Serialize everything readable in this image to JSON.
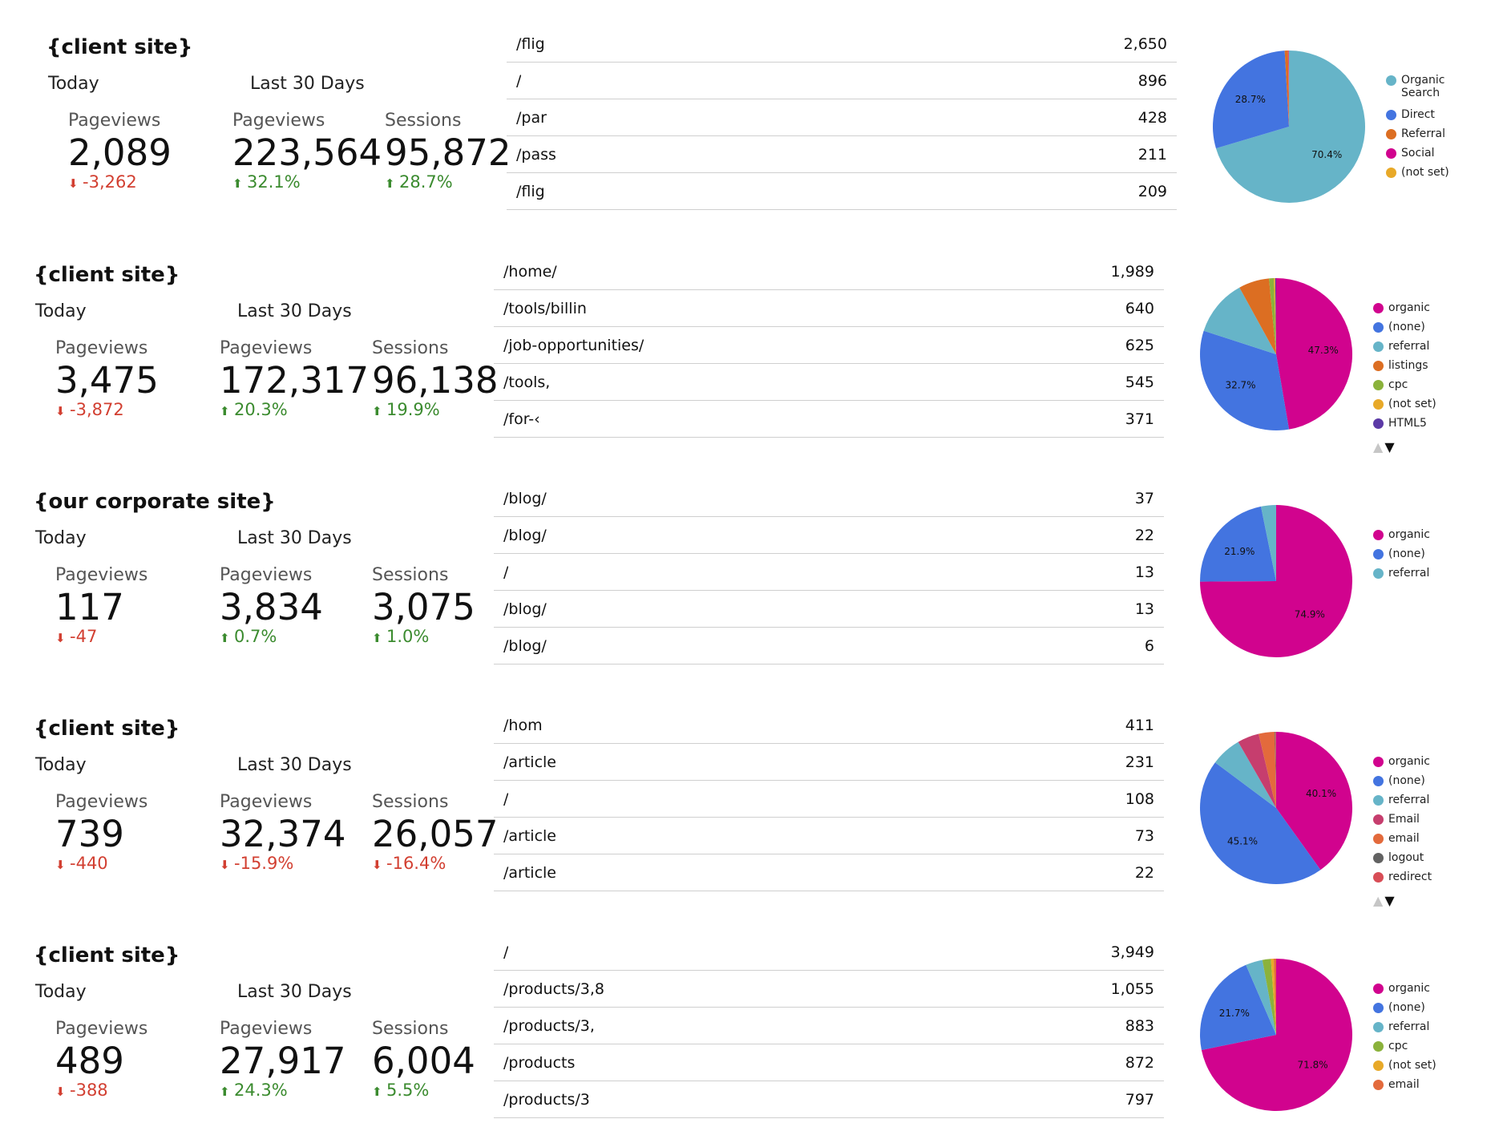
{
  "sections": [
    {
      "title": "{client site}",
      "today_label": "Today",
      "last30_label": "Last 30 Days",
      "today": {
        "label": "Pageviews",
        "value": "2,089",
        "delta": "-3,262",
        "dir": "down"
      },
      "pv30": {
        "label": "Pageviews",
        "value": "223,564",
        "delta": "32.1%",
        "dir": "up"
      },
      "sess30": {
        "label": "Sessions",
        "value": "95,872",
        "delta": "28.7%",
        "dir": "up"
      },
      "pages": [
        {
          "path": "/flig",
          "count": "2,650"
        },
        {
          "path": "/",
          "count": "896"
        },
        {
          "path": "/par",
          "count": "428"
        },
        {
          "path": "/pass",
          "count": "211"
        },
        {
          "path": "/flig",
          "count": "209"
        }
      ],
      "chart_data": {
        "type": "pie",
        "slices": [
          {
            "name": "Organic Search",
            "value": 70.4,
            "color": "#66b4c8",
            "label": "70.4%"
          },
          {
            "name": "Direct",
            "value": 28.7,
            "color": "#4374e0",
            "label": "28.7%"
          },
          {
            "name": "Referral",
            "value": 0.7,
            "color": "#dc6e22",
            "label": ""
          },
          {
            "name": "Social",
            "value": 0.15,
            "color": "#d1038e",
            "label": ""
          },
          {
            "name": "(not set)",
            "value": 0.05,
            "color": "#e8a928",
            "label": ""
          }
        ],
        "legend_lines": [
          [
            "Organic",
            "Search"
          ],
          [
            "Direct"
          ],
          [
            "Referral"
          ],
          [
            "Social"
          ],
          [
            "(not set)"
          ]
        ],
        "legend_position": "right",
        "pager": false
      }
    },
    {
      "title": "{client site}",
      "today_label": "Today",
      "last30_label": "Last 30 Days",
      "today": {
        "label": "Pageviews",
        "value": "3,475",
        "delta": "-3,872",
        "dir": "down"
      },
      "pv30": {
        "label": "Pageviews",
        "value": "172,317",
        "delta": "20.3%",
        "dir": "up"
      },
      "sess30": {
        "label": "Sessions",
        "value": "96,138",
        "delta": "19.9%",
        "dir": "up"
      },
      "pages": [
        {
          "path": "/home/",
          "count": "1,989"
        },
        {
          "path": "/tools/billin",
          "count": "640"
        },
        {
          "path": "/job-opportunities/",
          "count": "625"
        },
        {
          "path": "/tools,",
          "count": "545"
        },
        {
          "path": "/for-‹",
          "count": "371"
        }
      ],
      "chart_data": {
        "type": "pie",
        "slices": [
          {
            "name": "organic",
            "value": 47.3,
            "color": "#d1038e",
            "label": "47.3%"
          },
          {
            "name": "(none)",
            "value": 32.7,
            "color": "#4374e0",
            "label": "32.7%"
          },
          {
            "name": "referral",
            "value": 12.0,
            "color": "#66b4c8",
            "label": ""
          },
          {
            "name": "listings",
            "value": 6.5,
            "color": "#dc6e22",
            "label": ""
          },
          {
            "name": "cpc",
            "value": 1.0,
            "color": "#8bb23b",
            "label": ""
          },
          {
            "name": "(not set)",
            "value": 0.3,
            "color": "#e8a928",
            "label": ""
          },
          {
            "name": "HTML5",
            "value": 0.2,
            "color": "#5c3aa6",
            "label": ""
          }
        ],
        "legend_lines": [
          [
            "organic"
          ],
          [
            "(none)"
          ],
          [
            "referral"
          ],
          [
            "listings"
          ],
          [
            "cpc"
          ],
          [
            "(not set)"
          ],
          [
            "HTML5"
          ]
        ],
        "legend_position": "right",
        "pager": true
      }
    },
    {
      "title": "{our corporate site}",
      "today_label": "Today",
      "last30_label": "Last 30 Days",
      "today": {
        "label": "Pageviews",
        "value": "117",
        "delta": "-47",
        "dir": "down"
      },
      "pv30": {
        "label": "Pageviews",
        "value": "3,834",
        "delta": "0.7%",
        "dir": "up"
      },
      "sess30": {
        "label": "Sessions",
        "value": "3,075",
        "delta": "1.0%",
        "dir": "up"
      },
      "pages": [
        {
          "path": "/blog/",
          "count": "37"
        },
        {
          "path": "/blog/",
          "count": "22"
        },
        {
          "path": "/",
          "count": "13"
        },
        {
          "path": "/blog/",
          "count": "13"
        },
        {
          "path": "/blog/",
          "count": "6"
        }
      ],
      "chart_data": {
        "type": "pie",
        "slices": [
          {
            "name": "organic",
            "value": 74.9,
            "color": "#d1038e",
            "label": "74.9%"
          },
          {
            "name": "(none)",
            "value": 21.9,
            "color": "#4374e0",
            "label": "21.9%"
          },
          {
            "name": "referral",
            "value": 3.2,
            "color": "#66b4c8",
            "label": ""
          }
        ],
        "legend_lines": [
          [
            "organic"
          ],
          [
            "(none)"
          ],
          [
            "referral"
          ]
        ],
        "legend_position": "right",
        "pager": false
      }
    },
    {
      "title": "{client site}",
      "today_label": "Today",
      "last30_label": "Last 30 Days",
      "today": {
        "label": "Pageviews",
        "value": "739",
        "delta": "-440",
        "dir": "down"
      },
      "pv30": {
        "label": "Pageviews",
        "value": "32,374",
        "delta": "-15.9%",
        "dir": "down"
      },
      "sess30": {
        "label": "Sessions",
        "value": "26,057",
        "delta": "-16.4%",
        "dir": "down"
      },
      "pages": [
        {
          "path": "/hom",
          "count": "411"
        },
        {
          "path": "/article",
          "count": "231"
        },
        {
          "path": "/",
          "count": "108"
        },
        {
          "path": "/article",
          "count": "73"
        },
        {
          "path": "/article",
          "count": "22"
        }
      ],
      "chart_data": {
        "type": "pie",
        "slices": [
          {
            "name": "organic",
            "value": 40.1,
            "color": "#d1038e",
            "label": "40.1%"
          },
          {
            "name": "(none)",
            "value": 45.1,
            "color": "#4374e0",
            "label": "45.1%"
          },
          {
            "name": "referral",
            "value": 6.5,
            "color": "#66b4c8",
            "label": ""
          },
          {
            "name": "Email",
            "value": 4.6,
            "color": "#c63e6e",
            "label": ""
          },
          {
            "name": "email",
            "value": 3.4,
            "color": "#e36a3c",
            "label": ""
          },
          {
            "name": "logout",
            "value": 0.15,
            "color": "#626262",
            "label": ""
          },
          {
            "name": "redirect",
            "value": 0.15,
            "color": "#d84d56",
            "label": ""
          }
        ],
        "legend_lines": [
          [
            "organic"
          ],
          [
            "(none)"
          ],
          [
            "referral"
          ],
          [
            "Email"
          ],
          [
            "email"
          ],
          [
            "logout"
          ],
          [
            "redirect"
          ]
        ],
        "legend_position": "right",
        "pager": true
      }
    },
    {
      "title": "{client site}",
      "today_label": "Today",
      "last30_label": "Last 30 Days",
      "today": {
        "label": "Pageviews",
        "value": "489",
        "delta": "-388",
        "dir": "down"
      },
      "pv30": {
        "label": "Pageviews",
        "value": "27,917",
        "delta": "24.3%",
        "dir": "up"
      },
      "sess30": {
        "label": "Sessions",
        "value": "6,004",
        "delta": "5.5%",
        "dir": "up"
      },
      "pages": [
        {
          "path": "/",
          "count": "3,949"
        },
        {
          "path": "/products/3,8",
          "count": "1,055"
        },
        {
          "path": "/products/3,",
          "count": "883"
        },
        {
          "path": "/products",
          "count": "872"
        },
        {
          "path": "/products/3",
          "count": "797"
        }
      ],
      "chart_data": {
        "type": "pie",
        "slices": [
          {
            "name": "organic",
            "value": 71.8,
            "color": "#d1038e",
            "label": "71.8%"
          },
          {
            "name": "(none)",
            "value": 21.7,
            "color": "#4374e0",
            "label": "21.7%"
          },
          {
            "name": "referral",
            "value": 3.6,
            "color": "#66b4c8",
            "label": ""
          },
          {
            "name": "cpc",
            "value": 1.8,
            "color": "#8bb23b",
            "label": ""
          },
          {
            "name": "(not set)",
            "value": 0.6,
            "color": "#e8a928",
            "label": ""
          },
          {
            "name": "email",
            "value": 0.5,
            "color": "#e36a3c",
            "label": ""
          }
        ],
        "legend_lines": [
          [
            "organic"
          ],
          [
            "(none)"
          ],
          [
            "referral"
          ],
          [
            "cpc"
          ],
          [
            "(not set)"
          ],
          [
            "email"
          ]
        ],
        "legend_position": "right",
        "pager": false
      }
    }
  ],
  "icons": {
    "up_arrow": "arrow-up-icon",
    "down_arrow": "arrow-down-icon",
    "pager_up": "▲",
    "pager_down": "▼"
  }
}
